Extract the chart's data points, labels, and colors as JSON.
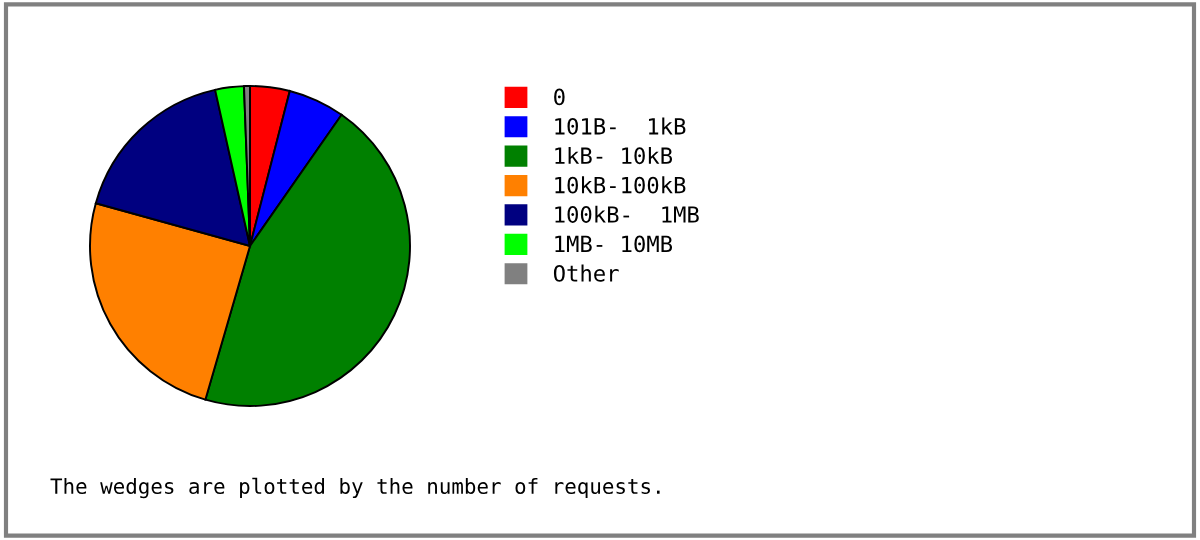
{
  "chart_data": {
    "type": "pie",
    "categories": [
      "0",
      "101B-  1kB",
      "1kB- 10kB",
      "10kB-100kB",
      "100kB-  1MB",
      "1MB- 10MB",
      "Other"
    ],
    "values": [
      4,
      5.7,
      44.8,
      24.8,
      17.2,
      2.9,
      0.6
    ],
    "colors": [
      "#ff0000",
      "#0000ff",
      "#008000",
      "#ff8000",
      "#000080",
      "#00ff00",
      "#808080"
    ],
    "legend": "right",
    "annotations": [
      "The wedges are plotted by the number of requests."
    ]
  }
}
